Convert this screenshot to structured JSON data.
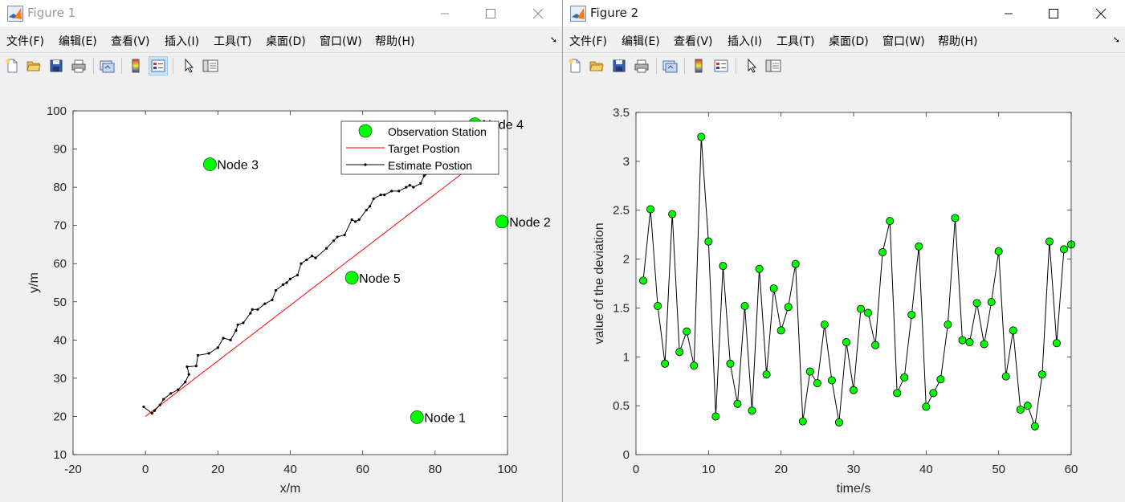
{
  "menu": [
    "文件(F)",
    "编辑(E)",
    "查看(V)",
    "插入(I)",
    "工具(T)",
    "桌面(D)",
    "窗口(W)",
    "帮助(H)"
  ],
  "window1": {
    "title": "Figure 1",
    "chart_data": {
      "type": "scatter",
      "xlabel": "x/m",
      "ylabel": "y/m",
      "xlim": [
        -20,
        100
      ],
      "ylim": [
        10,
        100
      ],
      "xticks": [
        -20,
        0,
        20,
        40,
        60,
        80,
        100
      ],
      "yticks": [
        10,
        20,
        30,
        40,
        50,
        60,
        70,
        80,
        90,
        100
      ],
      "legend_position": "top-right",
      "legend": [
        "Observation Station",
        "Target Postion",
        "Estimate Postion"
      ],
      "stations": [
        {
          "label": "Node 1",
          "x": 75.0,
          "y": 19.8
        },
        {
          "label": "Node 2",
          "x": 98.5,
          "y": 71.0
        },
        {
          "label": "Node 3",
          "x": 17.8,
          "y": 86.0
        },
        {
          "label": "Node 4",
          "x": 91.0,
          "y": 96.5
        },
        {
          "label": "Node 5",
          "x": 57.0,
          "y": 56.3
        }
      ],
      "target": [
        [
          0,
          20
        ],
        [
          88,
          84
        ]
      ],
      "estimate": [
        [
          -0.5,
          22.5
        ],
        [
          1.8,
          20.8
        ],
        [
          2.5,
          21.5
        ],
        [
          4,
          23
        ],
        [
          5,
          24.5
        ],
        [
          7,
          26
        ],
        [
          9,
          27
        ],
        [
          11,
          29
        ],
        [
          12,
          31
        ],
        [
          11.5,
          33
        ],
        [
          14,
          33.2
        ],
        [
          14.5,
          36
        ],
        [
          17.5,
          36.5
        ],
        [
          20,
          38
        ],
        [
          21.5,
          40.5
        ],
        [
          23.5,
          40
        ],
        [
          25,
          42.5
        ],
        [
          25.5,
          44
        ],
        [
          27,
          44.5
        ],
        [
          29,
          47
        ],
        [
          29.5,
          48
        ],
        [
          31,
          48
        ],
        [
          33,
          49.5
        ],
        [
          35,
          50.5
        ],
        [
          36,
          53
        ],
        [
          38,
          54.5
        ],
        [
          39,
          55
        ],
        [
          40,
          56
        ],
        [
          42,
          57
        ],
        [
          43,
          60
        ],
        [
          44.5,
          61
        ],
        [
          46,
          62
        ],
        [
          47,
          61.5
        ],
        [
          50,
          64
        ],
        [
          52,
          66
        ],
        [
          53,
          67
        ],
        [
          55,
          67.5
        ],
        [
          57,
          71.5
        ],
        [
          58,
          71
        ],
        [
          59,
          71.5
        ],
        [
          61,
          74
        ],
        [
          62,
          75
        ],
        [
          63,
          77
        ],
        [
          65,
          78
        ],
        [
          66,
          78
        ],
        [
          68,
          79
        ],
        [
          70,
          79
        ],
        [
          72,
          80
        ],
        [
          73,
          80.5
        ],
        [
          74,
          80
        ],
        [
          76,
          81
        ],
        [
          77,
          83
        ],
        [
          79,
          84
        ],
        [
          81,
          84.5
        ],
        [
          83,
          85
        ],
        [
          85,
          86.5
        ],
        [
          87,
          88
        ]
      ]
    }
  },
  "window2": {
    "title": "Figure 2",
    "chart_data": {
      "type": "line",
      "xlabel": "time/s",
      "ylabel": "value of the deviation",
      "xlim": [
        0,
        60
      ],
      "ylim": [
        0,
        3.5
      ],
      "xticks": [
        0,
        10,
        20,
        30,
        40,
        50,
        60
      ],
      "yticks": [
        0,
        0.5,
        1,
        1.5,
        2,
        2.5,
        3,
        3.5
      ],
      "series": [
        {
          "values": [
            1.78,
            2.51,
            1.52,
            0.93,
            2.46,
            1.05,
            1.26,
            0.91,
            3.25,
            2.18,
            0.39,
            1.93,
            0.93,
            0.52,
            1.52,
            0.45,
            1.9,
            0.82,
            1.7,
            1.27,
            1.51,
            1.95,
            0.34,
            0.85,
            0.73,
            1.33,
            0.76,
            0.33,
            1.15,
            0.66,
            1.49,
            1.45,
            1.12,
            2.07,
            2.39,
            0.63,
            0.79,
            1.43,
            2.13,
            0.49,
            0.63,
            0.77,
            1.33,
            2.42,
            1.17,
            1.15,
            1.55,
            1.13,
            1.56,
            2.08,
            0.8,
            1.27,
            0.46,
            0.5,
            0.29,
            0.82,
            2.18,
            1.14,
            2.1,
            2.15
          ]
        }
      ]
    }
  },
  "colors": {
    "marker": "#00ff00",
    "target_line": "#ff0000",
    "estimate_line": "#000000"
  },
  "icons": [
    "new-file-icon",
    "open-folder-icon",
    "save-icon",
    "print-icon",
    "link-plot-icon",
    "colorbar-icon",
    "legend-icon",
    "pointer-icon",
    "property-editor-icon"
  ]
}
